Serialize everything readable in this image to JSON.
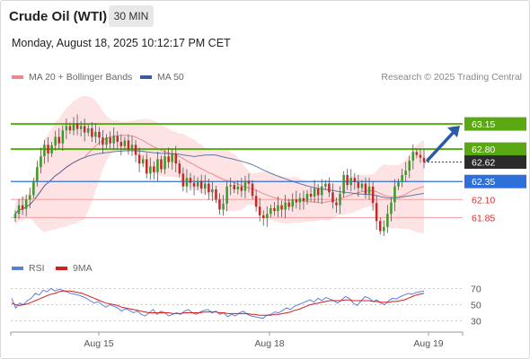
{
  "header": {
    "title": "Crude Oil (WTI)",
    "timeframe": "30 MIN",
    "datetime": "Monday, August 18, 2025 10:12:17 PM CET",
    "credit": "Research © 2025 Trading Central"
  },
  "legend": {
    "ma20_label": "MA 20 + Bollinger Bands",
    "ma50_label": "MA 50",
    "rsi_label": "RSI",
    "ma9_label": "9MA"
  },
  "colors": {
    "up_candle": "#3a9a2a",
    "down_candle": "#c62828",
    "ma20": "#f08a8a",
    "bollinger_fill": "#fcd9d9",
    "ma50": "#3d5a99",
    "resistance": "#5aa812",
    "pivot": "#2f6fdc",
    "support": "#f3a0a0",
    "arrow": "#2b5aa8",
    "rsi": "#5b7fe0",
    "rsi_ma": "#d41f1f"
  },
  "chart_data": [
    {
      "type": "candlestick",
      "timeframe": "30 MIN",
      "ylim": [
        61.38,
        63.65
      ],
      "x_ticks": [
        "Aug 15",
        "Aug 18",
        "Aug 19"
      ],
      "levels": [
        {
          "value": 63.15,
          "label": "63.15",
          "kind": "resistance"
        },
        {
          "value": 62.8,
          "label": "62.80",
          "kind": "resistance"
        },
        {
          "value": 62.62,
          "label": "62.62",
          "kind": "last_price"
        },
        {
          "value": 62.35,
          "label": "62.35",
          "kind": "pivot"
        },
        {
          "value": 62.1,
          "label": "62.10",
          "kind": "support"
        },
        {
          "value": 61.85,
          "label": "61.85",
          "kind": "support"
        }
      ],
      "projection": {
        "from": 62.62,
        "to": 63.15,
        "direction": "up"
      },
      "close": [
        61.9,
        62.02,
        61.97,
        62.1,
        62.16,
        62.35,
        62.55,
        62.7,
        62.86,
        62.74,
        62.85,
        62.97,
        62.88,
        63.06,
        63.12,
        63.06,
        63.16,
        63.08,
        63.12,
        63.03,
        63.09,
        62.97,
        63.04,
        62.96,
        62.86,
        62.96,
        62.88,
        62.98,
        62.9,
        62.84,
        62.92,
        62.79,
        62.86,
        62.72,
        62.6,
        62.66,
        62.46,
        62.56,
        62.48,
        62.66,
        62.52,
        62.7,
        62.62,
        62.74,
        62.6,
        62.46,
        62.28,
        62.4,
        62.33,
        62.28,
        62.36,
        62.25,
        62.32,
        62.2,
        62.24,
        62.1,
        61.96,
        62.04,
        62.28,
        62.3,
        62.24,
        62.28,
        62.22,
        62.36,
        62.32,
        62.15,
        62.0,
        61.88,
        61.84,
        61.9,
        61.98,
        61.94,
        62.02,
        61.96,
        62.06,
        62.0,
        62.1,
        62.06,
        62.12,
        62.08,
        62.18,
        62.14,
        62.25,
        62.16,
        62.28,
        62.32,
        62.2,
        62.06,
        62.02,
        62.18,
        62.44,
        62.3,
        62.4,
        62.34,
        62.26,
        62.32,
        62.18,
        62.28,
        62.05,
        61.8,
        61.66,
        61.72,
        61.9,
        62.06,
        62.28,
        62.34,
        62.44,
        62.5,
        62.64,
        62.76,
        62.72,
        62.68,
        62.62
      ]
    },
    {
      "type": "line",
      "title": "RSI",
      "ylim": [
        25,
        75
      ],
      "y_ticks": [
        30,
        50,
        70
      ],
      "series": [
        {
          "name": "RSI",
          "values": [
            58,
            46,
            52,
            50,
            55,
            58,
            64,
            62,
            68,
            66,
            70,
            67,
            69,
            68,
            66,
            64,
            63,
            62,
            60,
            58,
            55,
            52,
            54,
            50,
            47,
            50,
            48,
            46,
            42,
            45,
            43,
            40,
            42,
            38,
            36,
            40,
            44,
            38,
            42,
            40,
            36,
            38,
            40,
            38,
            42,
            44,
            40,
            38,
            41,
            43,
            44,
            40,
            42,
            38,
            40,
            35,
            38,
            36,
            40,
            42,
            38,
            36,
            35,
            34,
            33,
            37,
            38,
            41,
            40,
            43,
            46,
            44,
            48,
            50,
            52,
            54,
            56,
            53,
            58,
            55,
            59,
            57,
            55,
            52,
            56,
            60,
            58,
            52,
            49,
            55,
            60,
            58,
            54,
            56,
            52,
            50,
            55,
            58,
            57,
            60,
            62,
            64,
            63,
            65,
            66,
            67
          ]
        },
        {
          "name": "9MA",
          "values": [
            52,
            50,
            49,
            50,
            51,
            53,
            55,
            57,
            59,
            61,
            63,
            64,
            66,
            67,
            67,
            67,
            66,
            65,
            64,
            62,
            60,
            58,
            56,
            54,
            52,
            51,
            50,
            49,
            47,
            46,
            45,
            44,
            43,
            42,
            41,
            40,
            40,
            40,
            40,
            40,
            40,
            39,
            39,
            39,
            40,
            40,
            40,
            40,
            40,
            41,
            41,
            41,
            41,
            40,
            40,
            39,
            39,
            39,
            39,
            39,
            39,
            38,
            38,
            37,
            37,
            37,
            37,
            38,
            38,
            39,
            40,
            41,
            43,
            44,
            46,
            48,
            50,
            51,
            52,
            53,
            54,
            55,
            55,
            55,
            55,
            56,
            56,
            55,
            55,
            55,
            55,
            55,
            54,
            54,
            53,
            53,
            53,
            54,
            54,
            55,
            56,
            58,
            60,
            62,
            63,
            64
          ]
        }
      ],
      "x_ticks": [
        "Aug 15",
        "Aug 18",
        "Aug 19"
      ]
    }
  ]
}
